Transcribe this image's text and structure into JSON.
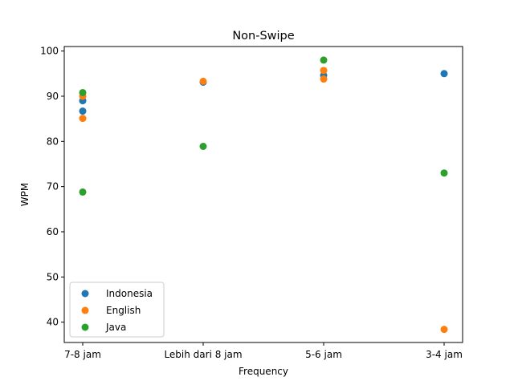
{
  "chart_data": {
    "type": "scatter",
    "title": "Non-Swipe",
    "xlabel": "Frequency",
    "ylabel": "WPM",
    "categories": [
      "7-8 jam",
      "Lebih dari 8 jam",
      "5-6 jam",
      "3-4 jam"
    ],
    "ylim": [
      35.5,
      101
    ],
    "yticks": [
      40,
      50,
      60,
      70,
      80,
      90,
      100
    ],
    "grid": false,
    "legend_position": "lower-left",
    "series": [
      {
        "name": "Indonesia",
        "color": "#1f77b4",
        "points": [
          {
            "x": "7-8 jam",
            "y": 89.0
          },
          {
            "x": "7-8 jam",
            "y": 86.7
          },
          {
            "x": "Lebih dari 8 jam",
            "y": 93.1
          },
          {
            "x": "5-6 jam",
            "y": 94.6
          },
          {
            "x": "3-4 jam",
            "y": 95.0
          }
        ]
      },
      {
        "name": "English",
        "color": "#ff7f0e",
        "points": [
          {
            "x": "7-8 jam",
            "y": 90.0
          },
          {
            "x": "7-8 jam",
            "y": 85.1
          },
          {
            "x": "Lebih dari 8 jam",
            "y": 93.3
          },
          {
            "x": "5-6 jam",
            "y": 95.7
          },
          {
            "x": "5-6 jam",
            "y": 93.8
          },
          {
            "x": "3-4 jam",
            "y": 38.4
          }
        ]
      },
      {
        "name": "Java",
        "color": "#2ca02c",
        "points": [
          {
            "x": "7-8 jam",
            "y": 90.8
          },
          {
            "x": "7-8 jam",
            "y": 68.8
          },
          {
            "x": "Lebih dari 8 jam",
            "y": 78.9
          },
          {
            "x": "5-6 jam",
            "y": 98.0
          },
          {
            "x": "3-4 jam",
            "y": 73.0
          }
        ]
      }
    ]
  }
}
